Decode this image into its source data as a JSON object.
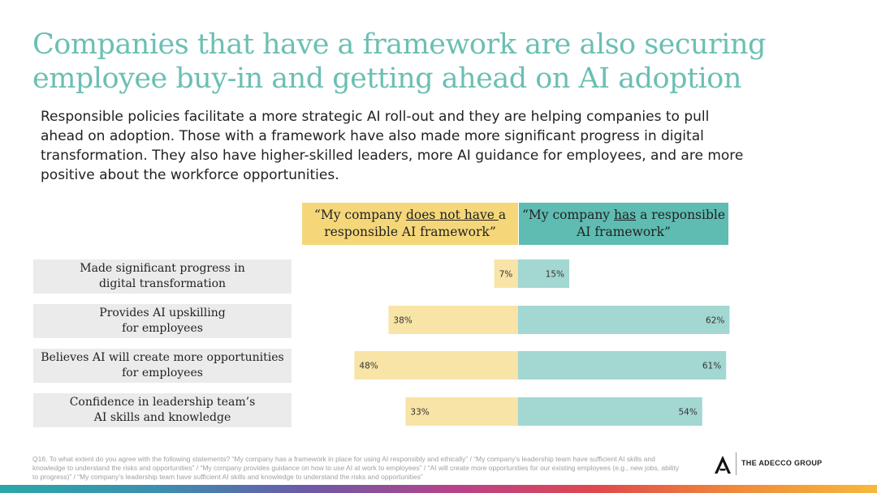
{
  "title": "Companies that have a framework are also securing employee buy-in and getting ahead on AI adoption",
  "subtitle": "Responsible policies facilitate a more strategic AI roll-out and they are helping companies to pull ahead on adoption. Those with a framework have also made more significant progress in digital transformation. They also have higher-skilled leaders, more AI guidance for employees, and are more positive about the workforce opportunities.",
  "headers": {
    "left": {
      "pre": "“My company ",
      "underlined": "does not have ",
      "post": "a responsible AI framework”"
    },
    "right": {
      "pre": "“My company ",
      "underlined": "has",
      "post": " a responsible AI framework”"
    }
  },
  "row_labels": [
    {
      "line1": "Made significant progress in",
      "line2": "digital transformation"
    },
    {
      "line1": "Provides AI upskilling",
      "line2": "for employees"
    },
    {
      "line1": "Believes AI will create more opportunities",
      "line2": "for employees"
    },
    {
      "line1": "Confidence in leadership team’s",
      "line2": "AI skills and knowledge"
    }
  ],
  "chart_data": {
    "type": "bar",
    "orientation": "horizontal-diverging",
    "categories": [
      "Made significant progress in digital transformation",
      "Provides AI upskilling for employees",
      "Believes AI will create more opportunities for employees",
      "Confidence in leadership team’s AI skills and knowledge"
    ],
    "series": [
      {
        "name": "“My company does not have a responsible AI framework”",
        "values": [
          7,
          38,
          48,
          33
        ],
        "color": "#f8e4a6",
        "labels": [
          "7%",
          "38%",
          "48%",
          "33%"
        ]
      },
      {
        "name": "“My company has a responsible AI framework”",
        "values": [
          15,
          62,
          61,
          54
        ],
        "color": "#a3d7d1",
        "labels": [
          "15%",
          "62%",
          "61%",
          "54%"
        ]
      }
    ],
    "unit": "%",
    "xlim": [
      0,
      62
    ]
  },
  "footnote": "Q16. To what extent do you agree with the following statements? “My company has a framework in place for using AI responsibly and ethically” / “My company’s leadership team have sufficient AI skills and knowledge to understand the risks and opportunities” / “My company provides guidance on how to use AI at work to employees” / “AI will create more opportunities for our existing employees (e.g., new jobs, ability to progress)” / “My company’s leadership team have sufficient AI skills and knowledge to understand the risks and opportunities”",
  "logo_text": "THE ADECCO GROUP",
  "colors": {
    "title": "#6bbfb4",
    "header_left": "#f5d77a",
    "header_right": "#5fbcb2",
    "bar_left": "#f8e4a6",
    "bar_right": "#a3d7d1",
    "label_bg": "#ebebeb"
  }
}
